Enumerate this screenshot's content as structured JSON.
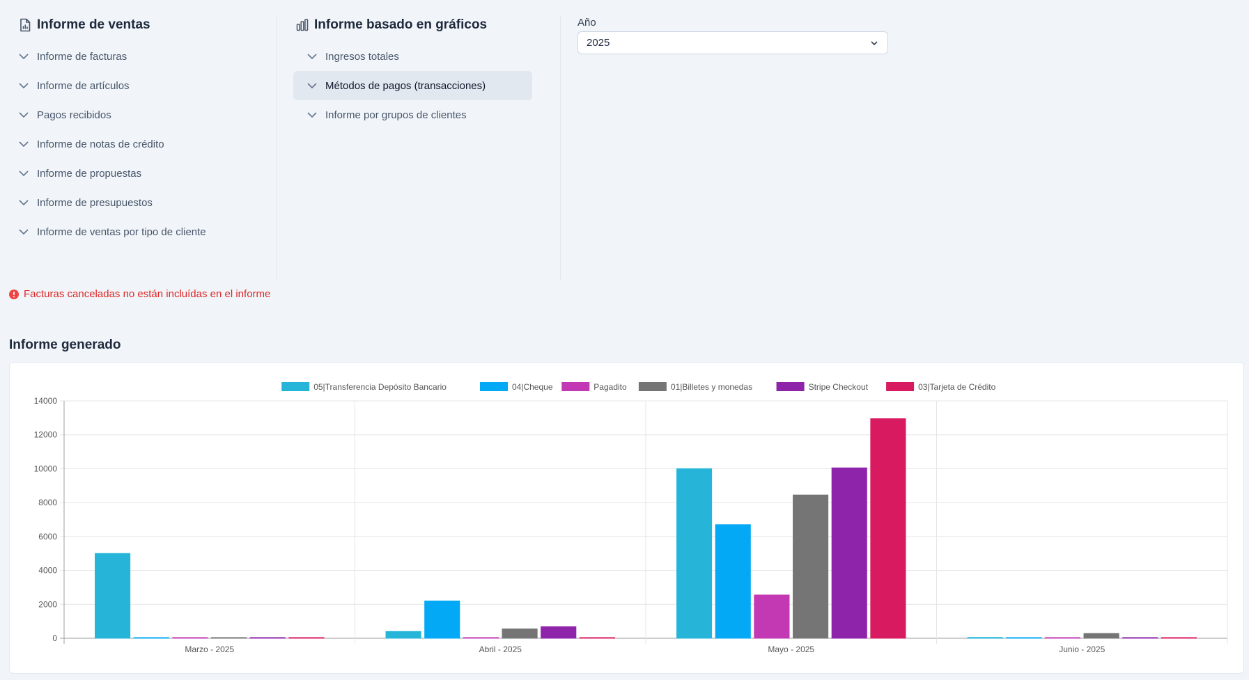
{
  "sales_reports": {
    "title": "Informe de ventas",
    "items": [
      "Informe de facturas",
      "Informe de artículos",
      "Pagos recibidos",
      "Informe de notas de crédito",
      "Informe de propuestas",
      "Informe de presupuestos",
      "Informe de ventas por tipo de cliente"
    ]
  },
  "chart_reports": {
    "title": "Informe basado en gráficos",
    "items": [
      "Ingresos totales",
      "Métodos de pagos (transacciones)",
      "Informe por grupos de clientes"
    ],
    "active_index": 1
  },
  "year_filter": {
    "label": "Año",
    "value": "2025"
  },
  "warning": "Facturas canceladas no están incluídas en el informe",
  "report_title": "Informe generado",
  "chart_data": {
    "type": "bar",
    "categories": [
      "Marzo - 2025",
      "Abril - 2025",
      "Mayo - 2025",
      "Junio - 2025"
    ],
    "ylim": [
      0,
      14000
    ],
    "yticks": [
      0,
      2000,
      4000,
      6000,
      8000,
      10000,
      12000,
      14000
    ],
    "grid": true,
    "legend_position": "top",
    "series": [
      {
        "name": "05|Transferencia Depósito Bancario",
        "color": "#26b5d9",
        "values": [
          5000,
          400,
          10000,
          50
        ]
      },
      {
        "name": "04|Cheque",
        "color": "#03a9f4",
        "values": [
          0,
          2200,
          6700,
          0
        ]
      },
      {
        "name": "Pagadito",
        "color": "#c239b3",
        "values": [
          0,
          0,
          2550,
          0
        ]
      },
      {
        "name": "01|Billetes y monedas",
        "color": "#757575",
        "values": [
          0,
          550,
          8450,
          280
        ]
      },
      {
        "name": "Stripe Checkout",
        "color": "#8e24aa",
        "values": [
          0,
          680,
          10050,
          0
        ]
      },
      {
        "name": "03|Tarjeta de Crédito",
        "color": "#d81b60",
        "values": [
          0,
          0,
          12950,
          0
        ]
      }
    ]
  }
}
